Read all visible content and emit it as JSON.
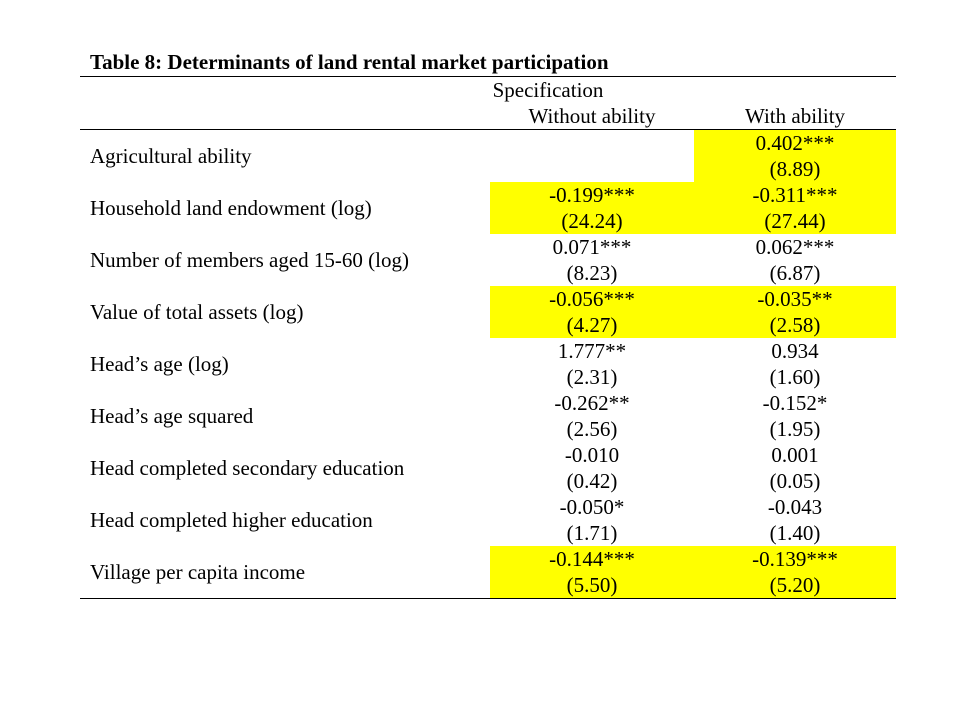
{
  "table": {
    "title": "Table 8: Determinants of land rental market participation",
    "spec_header": "Specification",
    "col_headers": [
      "Without ability",
      "With ability"
    ],
    "highlight_color": "#ffff00",
    "rows": [
      {
        "label": "Agricultural ability",
        "c1": "",
        "c1_se": "",
        "c2": "0.402***",
        "c2_se": "(8.89)"
      },
      {
        "label": "Household land endowment (log)",
        "c1": "-0.199***",
        "c1_se": "(24.24)",
        "c2": "-0.311***",
        "c2_se": "(27.44)"
      },
      {
        "label": "Number of members aged 15-60 (log)",
        "c1": "0.071***",
        "c1_se": "(8.23)",
        "c2": "0.062***",
        "c2_se": "(6.87)"
      },
      {
        "label": "Value of total assets (log)",
        "c1": "-0.056***",
        "c1_se": "(4.27)",
        "c2": "-0.035**",
        "c2_se": "(2.58)"
      },
      {
        "label": "Head’s age (log)",
        "c1": "1.777**",
        "c1_se": "(2.31)",
        "c2": "0.934",
        "c2_se": "(1.60)"
      },
      {
        "label": "Head’s age squared",
        "c1": "-0.262**",
        "c1_se": "(2.56)",
        "c2": "-0.152*",
        "c2_se": "(1.95)"
      },
      {
        "label": "Head completed secondary education",
        "c1": "-0.010",
        "c1_se": "(0.42)",
        "c2": "0.001",
        "c2_se": "(0.05)"
      },
      {
        "label": "Head completed higher education",
        "c1": "-0.050*",
        "c1_se": "(1.71)",
        "c2": "-0.043",
        "c2_se": "(1.40)"
      },
      {
        "label": "Village per capita income",
        "c1": "-0.144***",
        "c1_se": "(5.50)",
        "c2": "-0.139***",
        "c2_se": "(5.20)"
      }
    ]
  }
}
